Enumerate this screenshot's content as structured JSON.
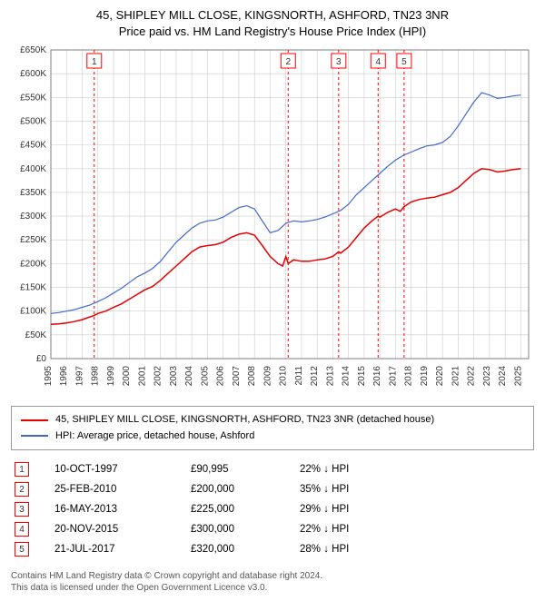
{
  "title_line1": "45, SHIPLEY MILL CLOSE, KINGSNORTH, ASHFORD, TN23 3NR",
  "title_line2": "Price paid vs. HM Land Registry's House Price Index (HPI)",
  "chart": {
    "type": "line",
    "background_color": "#ffffff",
    "grid_color": "#cccccc",
    "axis_color": "#666666",
    "tick_fontsize": 10,
    "tick_color": "#333333",
    "x_years": [
      1995,
      1996,
      1997,
      1998,
      1999,
      2000,
      2001,
      2002,
      2003,
      2004,
      2005,
      2006,
      2007,
      2008,
      2009,
      2010,
      2011,
      2012,
      2013,
      2014,
      2015,
      2016,
      2017,
      2018,
      2019,
      2020,
      2021,
      2022,
      2023,
      2024,
      2025
    ],
    "x_range": [
      1995,
      2025.5
    ],
    "y_ticks": [
      0,
      50000,
      100000,
      150000,
      200000,
      250000,
      300000,
      350000,
      400000,
      450000,
      500000,
      550000,
      600000,
      650000
    ],
    "y_labels": [
      "£0",
      "£50K",
      "£100K",
      "£150K",
      "£200K",
      "£250K",
      "£300K",
      "£350K",
      "£400K",
      "£450K",
      "£500K",
      "£550K",
      "£600K",
      "£650K"
    ],
    "y_range": [
      0,
      650000
    ],
    "marker_line_color": "#ff0000",
    "marker_line_dash": "3,3",
    "marker_box_border": "#ff0000",
    "marker_box_fill": "#ffffff",
    "marker_text_color": "#333333",
    "series": [
      {
        "name": "property",
        "color": "#e60000",
        "width": 1.5,
        "points": [
          [
            1995.0,
            72000
          ],
          [
            1995.5,
            73000
          ],
          [
            1996.0,
            75000
          ],
          [
            1996.5,
            78000
          ],
          [
            1997.0,
            82000
          ],
          [
            1997.5,
            88000
          ],
          [
            1997.77,
            90995
          ],
          [
            1998.0,
            95000
          ],
          [
            1998.5,
            100000
          ],
          [
            1999.0,
            108000
          ],
          [
            1999.5,
            115000
          ],
          [
            2000.0,
            125000
          ],
          [
            2000.5,
            135000
          ],
          [
            2001.0,
            145000
          ],
          [
            2001.5,
            152000
          ],
          [
            2002.0,
            165000
          ],
          [
            2002.5,
            180000
          ],
          [
            2003.0,
            195000
          ],
          [
            2003.5,
            210000
          ],
          [
            2004.0,
            225000
          ],
          [
            2004.5,
            235000
          ],
          [
            2005.0,
            238000
          ],
          [
            2005.5,
            240000
          ],
          [
            2006.0,
            245000
          ],
          [
            2006.5,
            255000
          ],
          [
            2007.0,
            262000
          ],
          [
            2007.5,
            265000
          ],
          [
            2008.0,
            260000
          ],
          [
            2008.5,
            238000
          ],
          [
            2009.0,
            215000
          ],
          [
            2009.5,
            200000
          ],
          [
            2009.8,
            195000
          ],
          [
            2010.0,
            215000
          ],
          [
            2010.15,
            200000
          ],
          [
            2010.5,
            208000
          ],
          [
            2011.0,
            205000
          ],
          [
            2011.5,
            205000
          ],
          [
            2012.0,
            208000
          ],
          [
            2012.5,
            210000
          ],
          [
            2013.0,
            215000
          ],
          [
            2013.37,
            225000
          ],
          [
            2013.5,
            222000
          ],
          [
            2014.0,
            235000
          ],
          [
            2014.5,
            255000
          ],
          [
            2015.0,
            275000
          ],
          [
            2015.5,
            290000
          ],
          [
            2015.89,
            300000
          ],
          [
            2016.0,
            298000
          ],
          [
            2016.5,
            308000
          ],
          [
            2017.0,
            315000
          ],
          [
            2017.3,
            310000
          ],
          [
            2017.55,
            320000
          ],
          [
            2018.0,
            330000
          ],
          [
            2018.5,
            335000
          ],
          [
            2019.0,
            338000
          ],
          [
            2019.5,
            340000
          ],
          [
            2020.0,
            345000
          ],
          [
            2020.5,
            350000
          ],
          [
            2021.0,
            360000
          ],
          [
            2021.5,
            375000
          ],
          [
            2022.0,
            390000
          ],
          [
            2022.5,
            400000
          ],
          [
            2023.0,
            398000
          ],
          [
            2023.5,
            393000
          ],
          [
            2024.0,
            395000
          ],
          [
            2024.5,
            398000
          ],
          [
            2025.0,
            400000
          ]
        ]
      },
      {
        "name": "hpi",
        "color": "#4169cc",
        "width": 1.2,
        "points": [
          [
            1995.0,
            95000
          ],
          [
            1995.5,
            97000
          ],
          [
            1996.0,
            100000
          ],
          [
            1996.5,
            103000
          ],
          [
            1997.0,
            108000
          ],
          [
            1997.5,
            113000
          ],
          [
            1998.0,
            120000
          ],
          [
            1998.5,
            128000
          ],
          [
            1999.0,
            138000
          ],
          [
            1999.5,
            148000
          ],
          [
            2000.0,
            160000
          ],
          [
            2000.5,
            172000
          ],
          [
            2001.0,
            180000
          ],
          [
            2001.5,
            190000
          ],
          [
            2002.0,
            205000
          ],
          [
            2002.5,
            225000
          ],
          [
            2003.0,
            245000
          ],
          [
            2003.5,
            260000
          ],
          [
            2004.0,
            275000
          ],
          [
            2004.5,
            285000
          ],
          [
            2005.0,
            290000
          ],
          [
            2005.5,
            292000
          ],
          [
            2006.0,
            298000
          ],
          [
            2006.5,
            308000
          ],
          [
            2007.0,
            318000
          ],
          [
            2007.5,
            322000
          ],
          [
            2008.0,
            315000
          ],
          [
            2008.5,
            290000
          ],
          [
            2009.0,
            265000
          ],
          [
            2009.5,
            270000
          ],
          [
            2010.0,
            285000
          ],
          [
            2010.5,
            290000
          ],
          [
            2011.0,
            288000
          ],
          [
            2011.5,
            290000
          ],
          [
            2012.0,
            293000
          ],
          [
            2012.5,
            298000
          ],
          [
            2013.0,
            305000
          ],
          [
            2013.5,
            312000
          ],
          [
            2014.0,
            325000
          ],
          [
            2014.5,
            345000
          ],
          [
            2015.0,
            360000
          ],
          [
            2015.5,
            375000
          ],
          [
            2016.0,
            390000
          ],
          [
            2016.5,
            405000
          ],
          [
            2017.0,
            418000
          ],
          [
            2017.5,
            428000
          ],
          [
            2018.0,
            435000
          ],
          [
            2018.5,
            442000
          ],
          [
            2019.0,
            448000
          ],
          [
            2019.5,
            450000
          ],
          [
            2020.0,
            455000
          ],
          [
            2020.5,
            468000
          ],
          [
            2021.0,
            490000
          ],
          [
            2021.5,
            515000
          ],
          [
            2022.0,
            540000
          ],
          [
            2022.5,
            560000
          ],
          [
            2023.0,
            555000
          ],
          [
            2023.5,
            548000
          ],
          [
            2024.0,
            550000
          ],
          [
            2024.5,
            553000
          ],
          [
            2025.0,
            555000
          ]
        ]
      }
    ],
    "sale_markers": [
      {
        "n": "1",
        "x": 1997.77
      },
      {
        "n": "2",
        "x": 2010.15
      },
      {
        "n": "3",
        "x": 2013.37
      },
      {
        "n": "4",
        "x": 2015.89
      },
      {
        "n": "5",
        "x": 2017.55
      }
    ]
  },
  "legend": {
    "items": [
      {
        "color": "#e60000",
        "label": "45, SHIPLEY MILL CLOSE, KINGSNORTH, ASHFORD, TN23 3NR (detached house)"
      },
      {
        "color": "#4169cc",
        "label": "HPI: Average price, detached house, Ashford"
      }
    ]
  },
  "sales": [
    {
      "n": "1",
      "date": "10-OCT-1997",
      "price": "£90,995",
      "delta": "22% ↓ HPI"
    },
    {
      "n": "2",
      "date": "25-FEB-2010",
      "price": "£200,000",
      "delta": "35% ↓ HPI"
    },
    {
      "n": "3",
      "date": "16-MAY-2013",
      "price": "£225,000",
      "delta": "29% ↓ HPI"
    },
    {
      "n": "4",
      "date": "20-NOV-2015",
      "price": "£300,000",
      "delta": "22% ↓ HPI"
    },
    {
      "n": "5",
      "date": "21-JUL-2017",
      "price": "£320,000",
      "delta": "28% ↓ HPI"
    }
  ],
  "sales_marker_color": "#ff0000",
  "footer_line1": "Contains HM Land Registry data © Crown copyright and database right 2024.",
  "footer_line2": "This data is licensed under the Open Government Licence v3.0."
}
